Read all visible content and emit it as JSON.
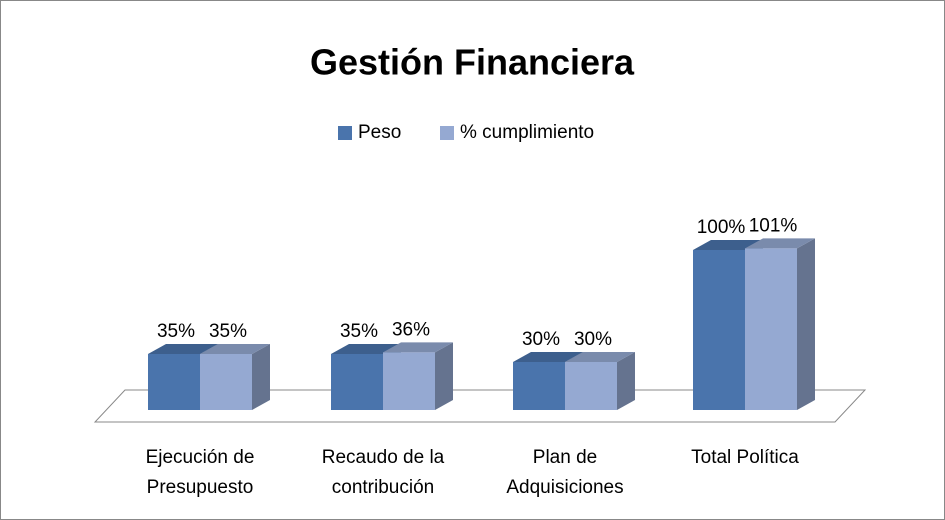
{
  "chart_data": {
    "type": "bar3d",
    "title": "Gestión Financiera",
    "categories": [
      "Ejecución de Presupuesto",
      "Recaudo de la contribución",
      "Plan de Adquisiciones",
      "Total Política"
    ],
    "series": [
      {
        "name": "Peso",
        "color": "#4a74ac",
        "values": [
          35,
          35,
          30,
          100
        ],
        "value_labels": [
          "35%",
          "35%",
          "30%",
          "100%"
        ]
      },
      {
        "name": "% cumplimiento",
        "color": "#95a9d2",
        "values": [
          35,
          36,
          30,
          101
        ],
        "value_labels": [
          "35%",
          "36%",
          "30%",
          "101%"
        ]
      }
    ],
    "legend": "top"
  }
}
